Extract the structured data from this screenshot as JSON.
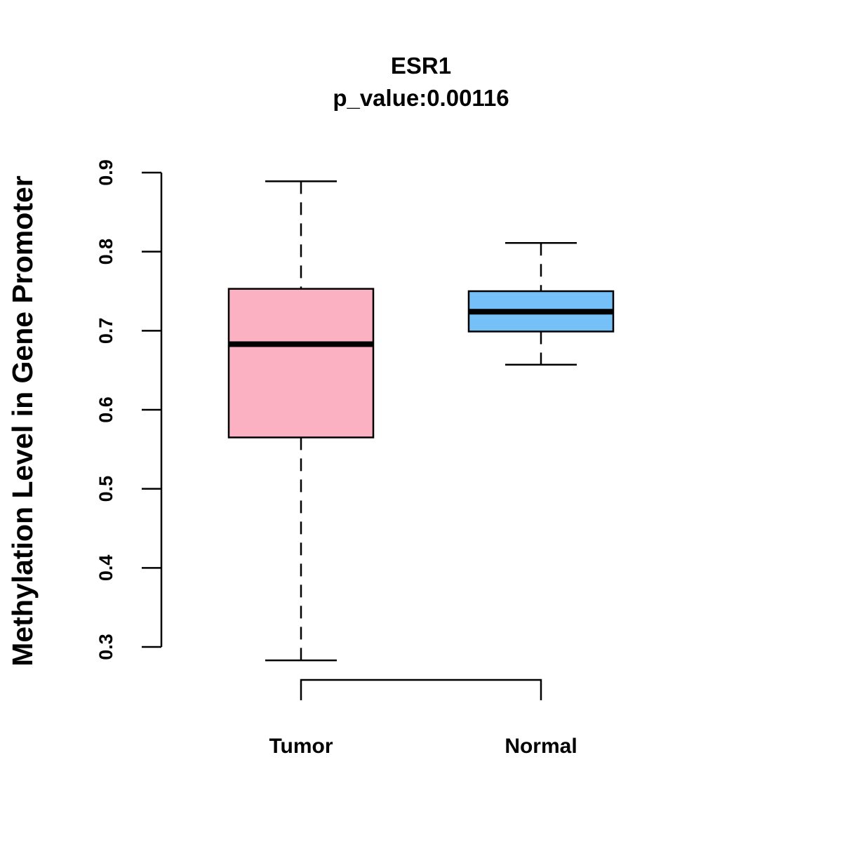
{
  "chart_data": {
    "type": "boxplot",
    "title": "ESR1",
    "subtitle": "p_value:0.00116",
    "xlabel": "",
    "ylabel": "Methylation Level in Gene Promoter",
    "ylim": [
      0.3,
      0.9
    ],
    "yticks": [
      0.3,
      0.4,
      0.5,
      0.6,
      0.7,
      0.8,
      0.9
    ],
    "ytick_labels": [
      "0.3",
      "0.4",
      "0.5",
      "0.6",
      "0.7",
      "0.8",
      "0.9"
    ],
    "categories": [
      "Tumor",
      "Normal"
    ],
    "series": [
      {
        "name": "Tumor",
        "color": "#FCB1C3",
        "whisker_low": 0.283,
        "q1": 0.565,
        "median": 0.683,
        "q3": 0.753,
        "whisker_high": 0.889
      },
      {
        "name": "Normal",
        "color": "#74C0F7",
        "whisker_low": 0.657,
        "q1": 0.699,
        "median": 0.724,
        "q3": 0.75,
        "whisker_high": 0.811
      }
    ],
    "grid": false
  }
}
